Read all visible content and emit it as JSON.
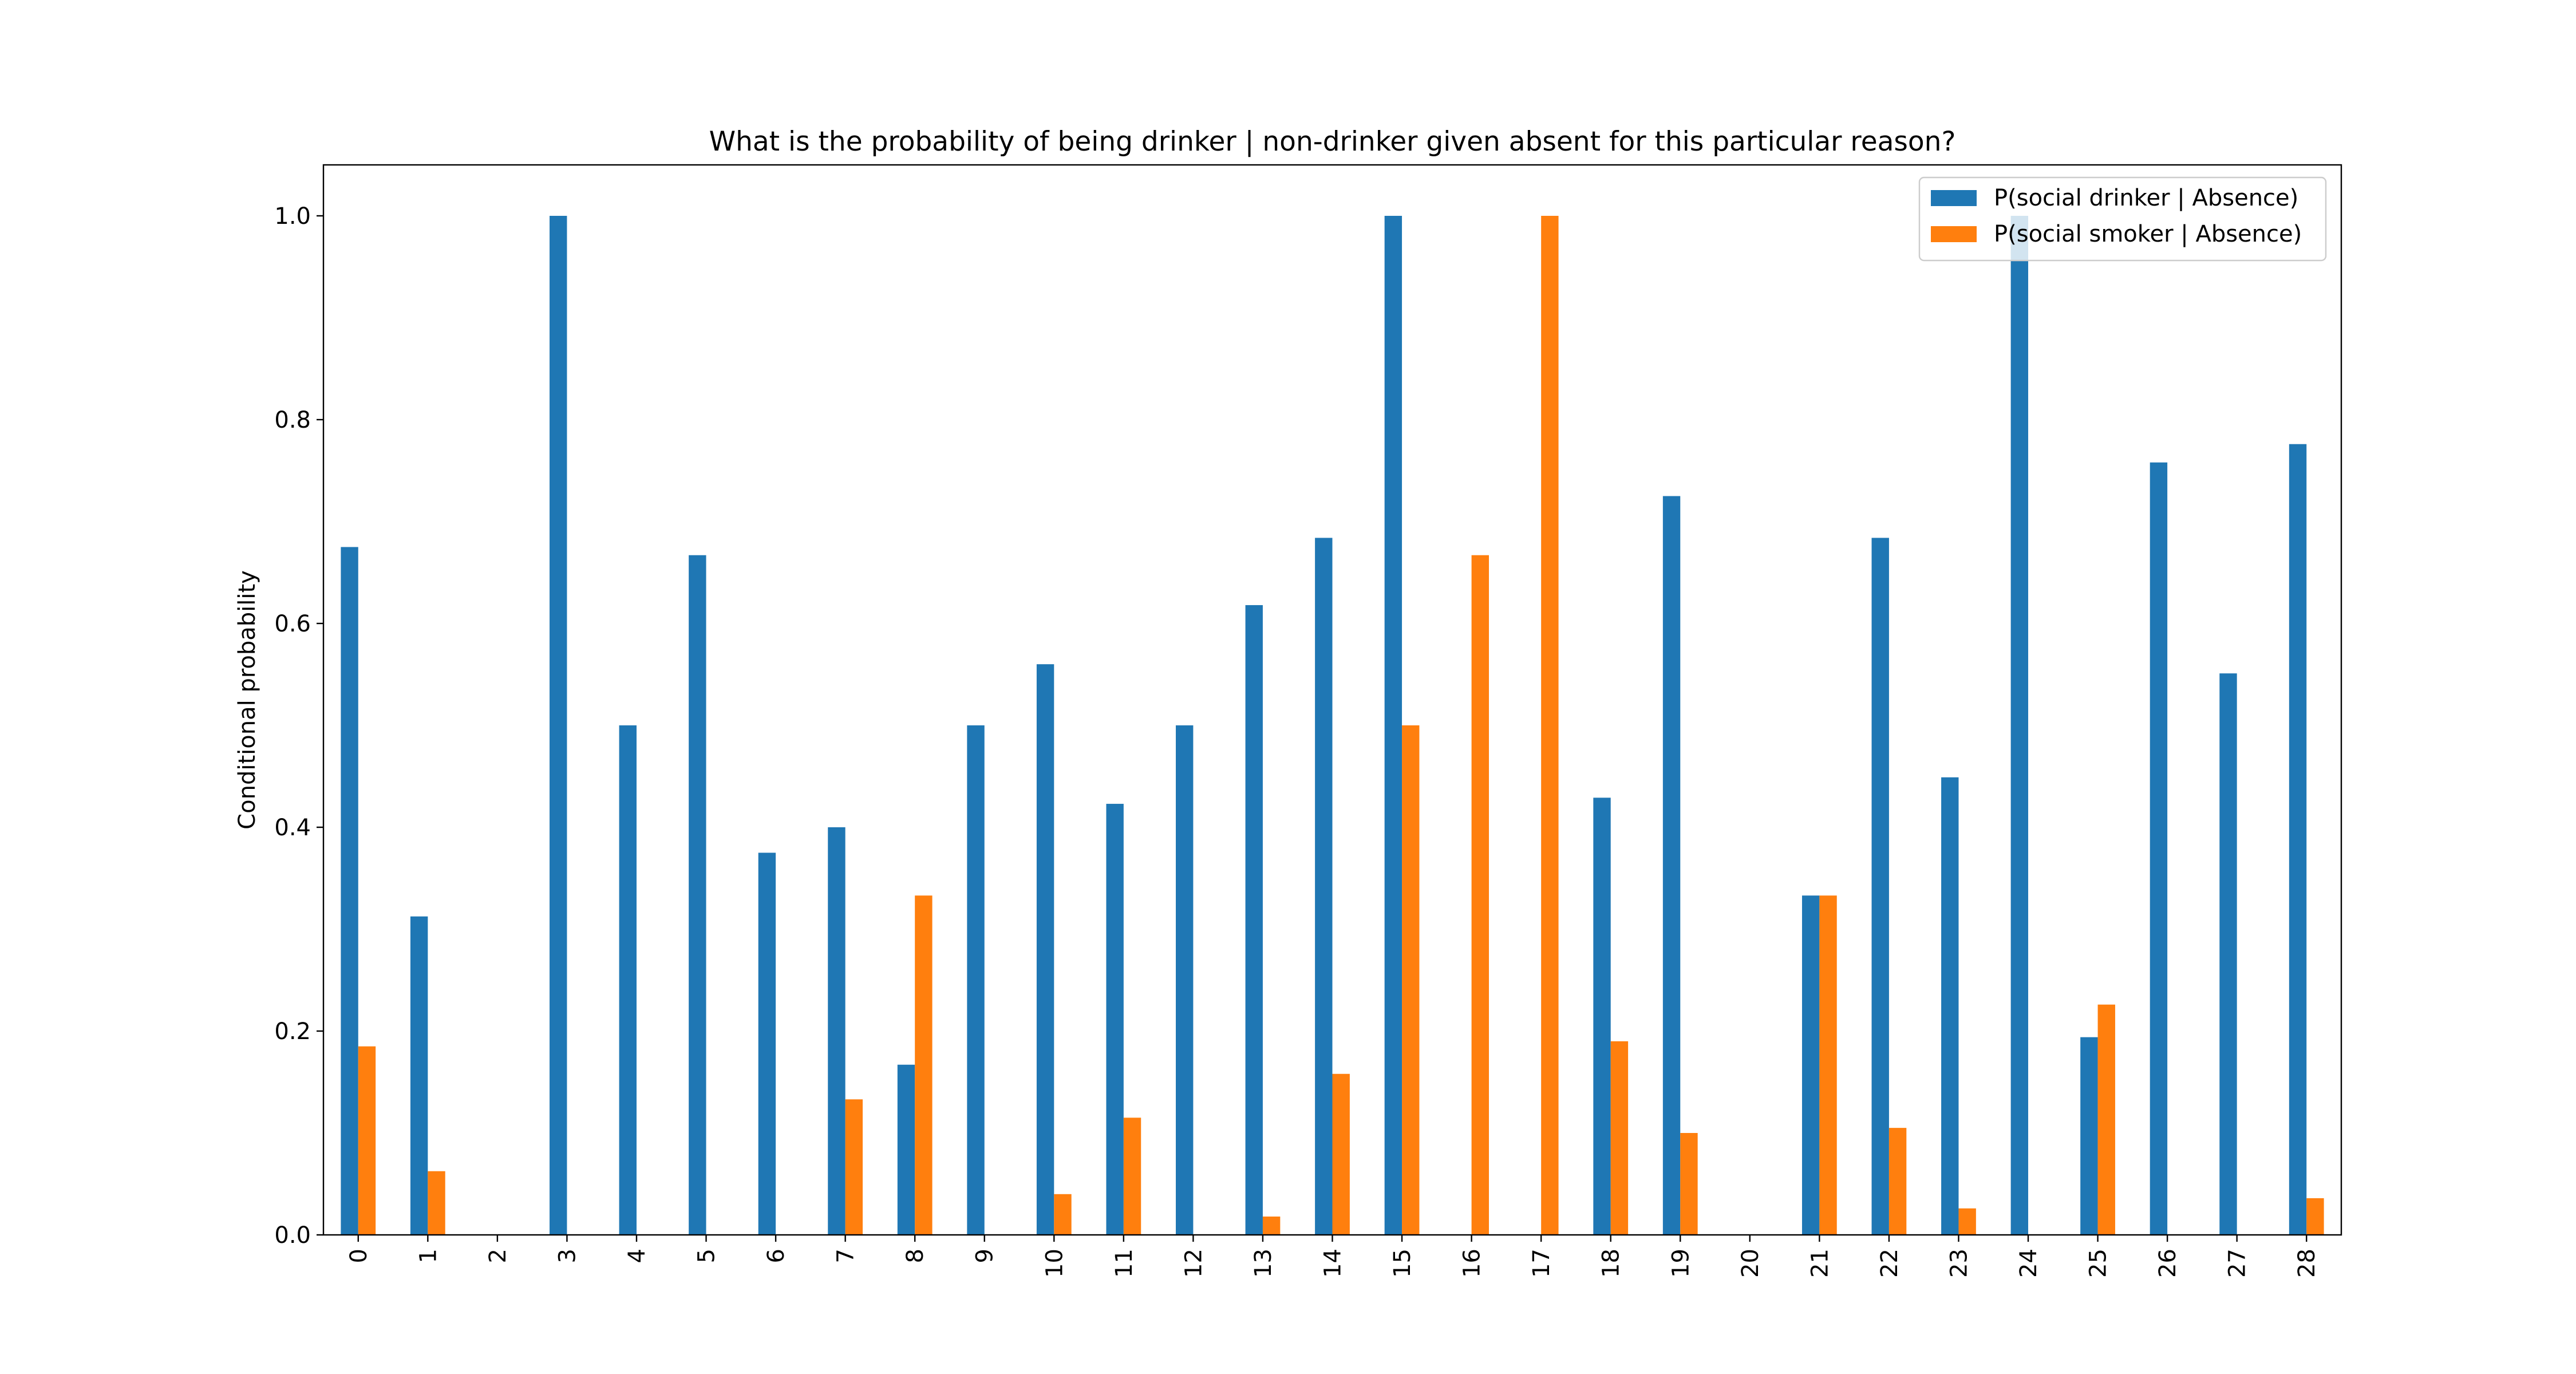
{
  "chart_data": {
    "type": "bar",
    "title": "What is the probability of being drinker | non-drinker given absent for this particular reason?",
    "xlabel": "",
    "ylabel": "Conditional probability",
    "ylim": [
      0,
      1.05
    ],
    "yticks": [
      "0.0",
      "0.2",
      "0.4",
      "0.6",
      "0.8",
      "1.0"
    ],
    "grid": false,
    "legend_position": "top-right",
    "categories": [
      "0",
      "1",
      "2",
      "3",
      "4",
      "5",
      "6",
      "7",
      "8",
      "9",
      "10",
      "11",
      "12",
      "13",
      "14",
      "15",
      "16",
      "17",
      "18",
      "19",
      "20",
      "21",
      "22",
      "23",
      "24",
      "25",
      "26",
      "27",
      "28"
    ],
    "series": [
      {
        "name": "P(social drinker | Absence)",
        "color": "#1f77b4",
        "values": [
          0.675,
          0.3125,
          0.0,
          1.0,
          0.5,
          0.667,
          0.375,
          0.4,
          0.167,
          0.5,
          0.56,
          0.423,
          0.5,
          0.618,
          0.684,
          1.0,
          0.0,
          0.0,
          0.429,
          0.725,
          0.0,
          0.333,
          0.684,
          0.449,
          1.0,
          0.194,
          0.758,
          0.551,
          0.776
        ]
      },
      {
        "name": "P(social smoker | Absence)",
        "color": "#ff7f0e",
        "values": [
          0.185,
          0.0625,
          0.0,
          0.0,
          0.0,
          0.0,
          0.0,
          0.133,
          0.333,
          0.0,
          0.04,
          0.115,
          0.0,
          0.018,
          0.158,
          0.5,
          0.667,
          1.0,
          0.19,
          0.1,
          0.0,
          0.333,
          0.105,
          0.026,
          0.0,
          0.226,
          0.0,
          0.0,
          0.036
        ]
      }
    ]
  }
}
